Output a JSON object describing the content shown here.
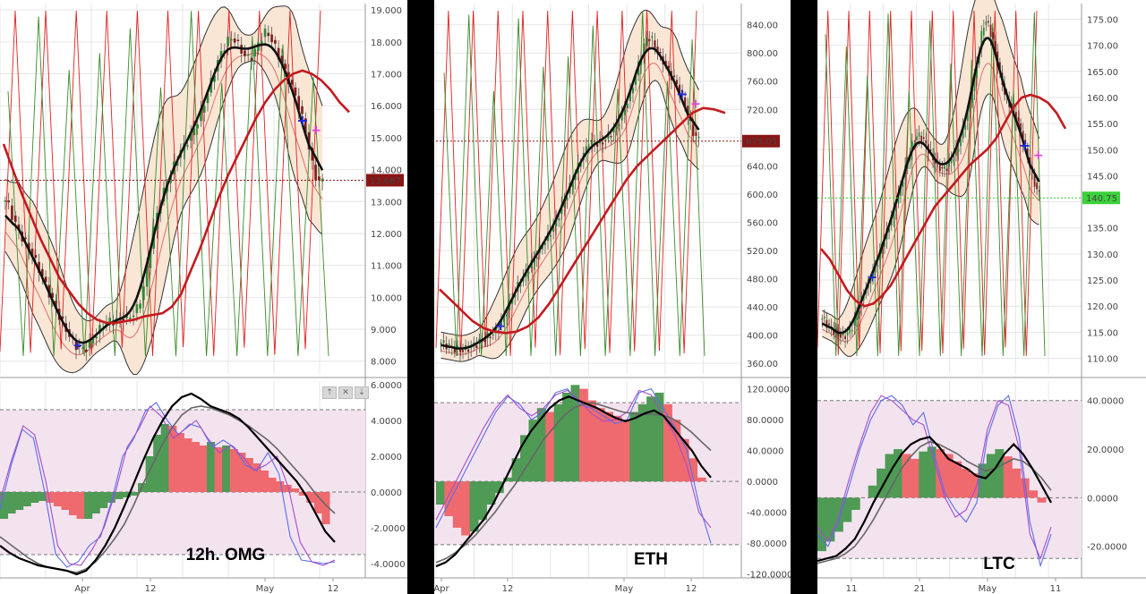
{
  "colors": {
    "candle_up": "#2e8b3a",
    "candle_down": "#7a1f1f",
    "bb_mid": "#111111",
    "bb_outer": "#333333",
    "bb_fill": "#f9e6d4",
    "ma_red": "#c41a1f",
    "osc_green": "#3c7a3c",
    "osc_red": "#c82020",
    "macd_up": "#4f9a55",
    "macd_down": "#ee6a6e",
    "osc_band": "#f3e3ef"
  },
  "toolbar": {
    "buttons": [
      "⇡",
      "✕",
      "⇣"
    ]
  },
  "chart_data": [
    {
      "type": "candlestick",
      "title": "12h.  OMG",
      "xlabel": "",
      "ylabel": "",
      "x_ticks": [
        "Apr",
        "12",
        "May",
        "12"
      ],
      "y_ticks": [
        "19.000",
        "18.000",
        "17.000",
        "16.000",
        "15.000",
        "14.000",
        "13.000",
        "12.000",
        "11.000",
        "10.000",
        "9.000",
        "8.000"
      ],
      "ylim": [
        7.6,
        19.2
      ],
      "last_price": "13.667",
      "price_path": [
        13.2,
        12.6,
        12.1,
        11.8,
        11.5,
        11.1,
        10.7,
        10.2,
        9.8,
        9.3,
        9.0,
        8.6,
        8.4,
        8.3,
        8.6,
        8.9,
        9.1,
        9.3,
        9.2,
        9.4,
        9.3,
        9.5,
        9.7,
        10.6,
        11.8,
        12.8,
        13.3,
        13.8,
        14.3,
        14.7,
        14.9,
        15.3,
        15.7,
        16.3,
        16.9,
        17.5,
        17.9,
        18.2,
        18.0,
        17.6,
        17.4,
        17.7,
        18.2,
        18.4,
        17.9,
        17.5,
        17.0,
        16.6,
        16.1,
        15.4,
        14.5,
        13.5,
        13.7
      ],
      "ma_red": [
        14.8,
        14.0,
        13.2,
        12.5,
        11.8,
        11.2,
        10.6,
        10.2,
        9.8,
        9.5,
        9.3,
        9.2,
        9.2,
        9.25,
        9.3,
        9.4,
        9.45,
        9.5,
        9.7,
        10.1,
        10.8,
        11.5,
        12.3,
        13.1,
        13.8,
        14.4,
        15.0,
        15.6,
        16.1,
        16.5,
        16.8,
        17.0,
        17.1,
        17.0,
        16.8,
        16.5,
        16.1,
        15.8
      ],
      "osc": {
        "yticks": [
          "6.0000",
          "4.0000",
          "2.0000",
          "0.0000",
          "-2.0000",
          "-4.0000"
        ],
        "ylim": [
          -4.8,
          6.2
        ],
        "band": [
          4.6,
          -3.5
        ],
        "hist": [
          -1.5,
          -1.2,
          -1.0,
          -0.8,
          -0.6,
          -0.5,
          -0.6,
          -0.8,
          -1.0,
          -1.3,
          -1.5,
          -1.5,
          -1.2,
          -0.9,
          -0.6,
          -0.4,
          -0.3,
          -0.2,
          0.5,
          2.0,
          3.2,
          3.8,
          3.7,
          3.3,
          3.0,
          2.8,
          2.6,
          2.8,
          2.5,
          2.6,
          2.4,
          2.2,
          1.9,
          1.6,
          1.2,
          0.8,
          0.6,
          0.4,
          0.2,
          -0.2,
          -0.6,
          -1.2,
          -1.8
        ],
        "line_black": [
          -3.0,
          -3.4,
          -3.7,
          -3.9,
          -4.1,
          -4.2,
          -4.3,
          -4.4,
          -4.6,
          -4.4,
          -3.8,
          -3.0,
          -2.0,
          -0.8,
          0.5,
          1.8,
          3.0,
          4.0,
          4.8,
          5.3,
          5.5,
          5.2,
          4.8,
          4.6,
          4.4,
          4.1,
          3.6,
          3.0,
          2.4,
          1.8,
          1.2,
          0.6,
          -0.2,
          -1.2,
          -2.2,
          -2.8
        ],
        "line_grey": [
          -2.5,
          -2.9,
          -3.3,
          -3.7,
          -4.0,
          -4.2,
          -4.3,
          -4.4,
          -4.5,
          -4.3,
          -3.9,
          -3.3,
          -2.6,
          -1.8,
          -0.7,
          0.5,
          1.6,
          2.7,
          3.6,
          4.3,
          4.7,
          4.8,
          4.7,
          4.5,
          4.3,
          4.0,
          3.7,
          3.3,
          2.9,
          2.4,
          1.8,
          1.2,
          0.6,
          -0.1,
          -0.7,
          -1.2
        ],
        "line_blue": [
          -1.0,
          1.5,
          3.5,
          3.0,
          0.0,
          -3.5,
          -4.2,
          -3.9,
          -3.0,
          -2.5,
          -0.5,
          2.0,
          3.0,
          4.5,
          5.0,
          4.0,
          3.2,
          3.8,
          3.6,
          2.5,
          2.9,
          2.5,
          1.5,
          1.2,
          2.2,
          1.0,
          -2.5,
          -3.8,
          -3.9,
          -4.0,
          -3.9
        ],
        "line_purple": [
          -0.5,
          1.8,
          3.7,
          3.2,
          0.5,
          -3.0,
          -4.0,
          -4.1,
          -3.2,
          -2.0,
          0.0,
          2.5,
          3.5,
          4.8,
          4.2,
          3.0,
          3.5,
          4.0,
          3.0,
          2.2,
          2.6,
          2.0,
          1.2,
          1.5,
          2.0,
          0.2,
          -2.8,
          -3.9,
          -4.1,
          -3.8
        ]
      }
    },
    {
      "type": "candlestick",
      "title": "ETH",
      "xlabel": "",
      "ylabel": "",
      "x_ticks": [
        "Apr",
        "12",
        "May",
        "12"
      ],
      "y_ticks": [
        "840.00",
        "800.00",
        "760.00",
        "720.00",
        "680.00",
        "640.00",
        "600.00",
        "560.00",
        "520.00",
        "480.00",
        "440.00",
        "400.00",
        "360.00"
      ],
      "ylim": [
        345,
        870
      ],
      "last_price": "675.05",
      "price_path": [
        390,
        385,
        380,
        378,
        382,
        388,
        395,
        400,
        410,
        430,
        455,
        475,
        490,
        510,
        525,
        540,
        560,
        585,
        610,
        635,
        660,
        675,
        670,
        678,
        690,
        705,
        730,
        760,
        800,
        830,
        805,
        790,
        770,
        755,
        730,
        690,
        675
      ],
      "ma_red": [
        465,
        450,
        435,
        420,
        410,
        405,
        403,
        405,
        412,
        425,
        445,
        470,
        495,
        520,
        545,
        570,
        595,
        620,
        640,
        655,
        670,
        685,
        700,
        715,
        722,
        720,
        715
      ],
      "osc": {
        "yticks": [
          "120.0000",
          "80.0000",
          "40.0000",
          "0.0000",
          "-40.0000",
          "-80.0000",
          "-120.0000"
        ],
        "ylim": [
          -125,
          130
        ],
        "band": [
          102,
          -82
        ],
        "hist": [
          -30,
          -45,
          -60,
          -70,
          -65,
          -50,
          -30,
          -15,
          5,
          30,
          60,
          80,
          95,
          90,
          100,
          115,
          125,
          120,
          105,
          95,
          90,
          85,
          80,
          90,
          100,
          110,
          115,
          100,
          80,
          55,
          30,
          5
        ],
        "line_black": [
          -110,
          -105,
          -95,
          -80,
          -65,
          -50,
          -30,
          -5,
          20,
          45,
          65,
          80,
          95,
          105,
          110,
          105,
          100,
          95,
          88,
          82,
          78,
          82,
          88,
          92,
          85,
          70,
          55,
          40,
          20,
          5
        ],
        "line_grey": [
          -105,
          -100,
          -92,
          -82,
          -70,
          -55,
          -40,
          -22,
          -5,
          15,
          35,
          55,
          70,
          85,
          95,
          100,
          102,
          98,
          94,
          90,
          88,
          87,
          87,
          86,
          82,
          74,
          64,
          52,
          40
        ],
        "line_blue": [
          -60,
          -30,
          0,
          30,
          60,
          90,
          110,
          100,
          80,
          90,
          115,
          120,
          100,
          95,
          85,
          75,
          80,
          115,
          120,
          95,
          70,
          40,
          -30,
          -80
        ],
        "line_purple": [
          -50,
          -20,
          10,
          40,
          70,
          95,
          112,
          95,
          85,
          95,
          112,
          118,
          105,
          88,
          78,
          80,
          90,
          118,
          112,
          85,
          60,
          20,
          -40,
          -60
        ]
      }
    },
    {
      "type": "candlestick",
      "title": "LTC",
      "xlabel": "",
      "ylabel": "",
      "x_ticks": [
        "11",
        "21",
        "May",
        "11"
      ],
      "y_ticks": [
        "175.00",
        "170.00",
        "165.00",
        "160.00",
        "155.00",
        "150.00",
        "145.00",
        "140.00",
        "135.00",
        "130.00",
        "125.00",
        "120.00",
        "115.00",
        "110.00"
      ],
      "ylim": [
        107,
        178
      ],
      "last_price": "140.75",
      "price_path": [
        118,
        116,
        115,
        114,
        115,
        118,
        122,
        125,
        128,
        132,
        136,
        140,
        145,
        150,
        153,
        152,
        149,
        147,
        146,
        148,
        150,
        155,
        160,
        168,
        176,
        172,
        166,
        160,
        158,
        155,
        150,
        145,
        140.75
      ],
      "ma_red": [
        131,
        129,
        126,
        123,
        121,
        120,
        120.5,
        122,
        124,
        127,
        130,
        133,
        136,
        139,
        141,
        143,
        145,
        147,
        148.5,
        150,
        152,
        155,
        158,
        160,
        160.5,
        160,
        159,
        157,
        154
      ],
      "osc": {
        "yticks": [
          "40.0000",
          "20.0000",
          "0.0000",
          "-20.0000"
        ],
        "ylim": [
          -33,
          48
        ],
        "band": [
          40,
          -25
        ],
        "hist": [
          -22,
          -18,
          -14,
          -10,
          -5,
          0,
          5,
          12,
          18,
          20,
          18,
          16,
          19,
          21,
          20,
          18,
          15,
          12,
          10,
          14,
          18,
          20,
          17,
          12,
          8,
          3,
          -2
        ],
        "line_black": [
          -26,
          -25,
          -24,
          -21,
          -17,
          -10,
          -2,
          5,
          12,
          18,
          22,
          24,
          25,
          21,
          16,
          14,
          12,
          9,
          8,
          12,
          18,
          22,
          18,
          12,
          5,
          -2
        ],
        "line_grey": [
          -27,
          -26,
          -25,
          -23,
          -20,
          -15,
          -9,
          -2,
          5,
          12,
          17,
          21,
          23,
          22,
          20,
          18,
          15,
          13,
          11,
          12,
          14,
          16,
          15,
          12,
          8,
          3
        ],
        "line_blue": [
          -15,
          -20,
          -10,
          5,
          20,
          32,
          40,
          42,
          38,
          30,
          35,
          18,
          2,
          -5,
          -10,
          -2,
          25,
          38,
          42,
          25,
          -10,
          -28,
          -15
        ],
        "line_purple": [
          -12,
          -18,
          -8,
          8,
          22,
          35,
          42,
          40,
          36,
          32,
          30,
          15,
          0,
          -8,
          -5,
          5,
          28,
          40,
          38,
          20,
          -15,
          -25,
          -12
        ]
      }
    }
  ]
}
